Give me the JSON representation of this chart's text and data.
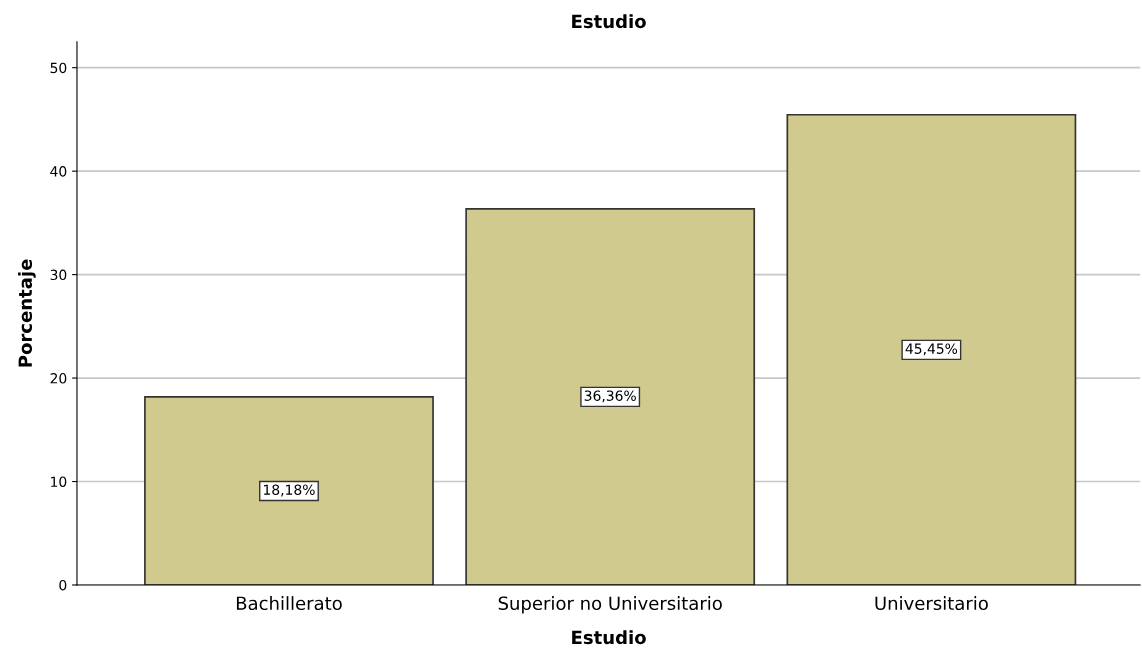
{
  "chart_data": {
    "type": "bar",
    "title": "Estudio",
    "xlabel": "Estudio",
    "ylabel": "Porcentaje",
    "categories": [
      "Bachillerato",
      "Superior no Universitario",
      "Universitario"
    ],
    "values": [
      18.18,
      36.36,
      45.45
    ],
    "value_labels": [
      "18,18%",
      "36,36%",
      "45,45%"
    ],
    "color": "#d0ca8f",
    "ylim": [
      0,
      52.5
    ],
    "yticks": [
      0,
      10,
      20,
      30,
      40,
      50
    ],
    "grid": "y"
  }
}
